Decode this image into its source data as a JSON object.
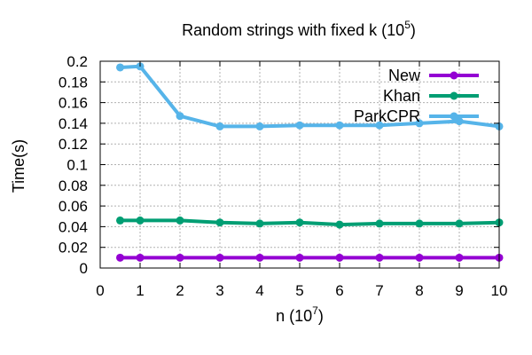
{
  "chart_data": {
    "type": "line",
    "title": "Random strings with fixed k (10",
    "title_sup": "5",
    "title_end": ")",
    "xlabel": "n (10",
    "xlabel_sup": "7",
    "xlabel_end": ")",
    "ylabel": "Time(s)",
    "xlim": [
      0,
      10
    ],
    "ylim": [
      0,
      0.2
    ],
    "x_ticks": [
      0,
      1,
      2,
      3,
      4,
      5,
      6,
      7,
      8,
      9,
      10
    ],
    "x_tick_labels": [
      "0",
      "1",
      "2",
      "3",
      "4",
      "5",
      "6",
      "7",
      "8",
      "9",
      "10"
    ],
    "y_ticks": [
      0,
      0.02,
      0.04,
      0.06,
      0.08,
      0.1,
      0.12,
      0.14,
      0.16,
      0.18,
      0.2
    ],
    "y_tick_labels": [
      "0",
      "0.02",
      "0.04",
      "0.06",
      "0.08",
      "0.1",
      "0.12",
      "0.14",
      "0.16",
      "0.18",
      "0.2"
    ],
    "grid": true,
    "legend_position": "top-right",
    "x": [
      0.5,
      1,
      2,
      3,
      4,
      5,
      6,
      7,
      8,
      9,
      10
    ],
    "series": [
      {
        "name": "New",
        "color": "#9400d3",
        "values": [
          0.01,
          0.01,
          0.01,
          0.01,
          0.01,
          0.01,
          0.01,
          0.01,
          0.01,
          0.01,
          0.01
        ]
      },
      {
        "name": "Khan",
        "color": "#009e73",
        "values": [
          0.046,
          0.046,
          0.046,
          0.044,
          0.043,
          0.044,
          0.042,
          0.043,
          0.043,
          0.043,
          0.044
        ]
      },
      {
        "name": "ParkCPR",
        "color": "#56b4e9",
        "values": [
          0.194,
          0.195,
          0.147,
          0.137,
          0.137,
          0.138,
          0.138,
          0.138,
          0.14,
          0.142,
          0.137
        ]
      }
    ]
  }
}
